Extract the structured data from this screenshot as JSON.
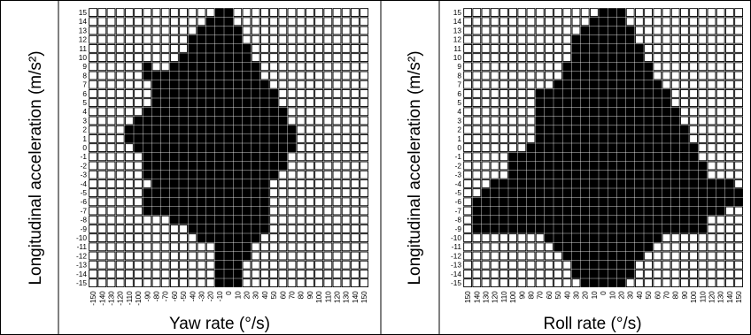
{
  "chart_data": [
    {
      "type": "heatmap",
      "title": "",
      "xlabel": "Yaw rate (°/s)",
      "ylabel": "Longitudinal acceleration (m/s²)",
      "x_ticks": [
        "-150",
        "-140",
        "-130",
        "-120",
        "-110",
        "-100",
        "-90",
        "-80",
        "-70",
        "-60",
        "-50",
        "-40",
        "-30",
        "-20",
        "-10",
        "0",
        "10",
        "20",
        "30",
        "40",
        "50",
        "60",
        "70",
        "80",
        "90",
        "100",
        "110",
        "120",
        "130",
        "140",
        "150"
      ],
      "y_ticks": [
        "15",
        "14",
        "13",
        "12",
        "11",
        "10",
        "9",
        "8",
        "7",
        "6",
        "5",
        "4",
        "3",
        "2",
        "1",
        "0",
        "-1",
        "-2",
        "-3",
        "-4",
        "-5",
        "-6",
        "-7",
        "-8",
        "-9",
        "-10",
        "-11",
        "-12",
        "-13",
        "-14",
        "-15"
      ],
      "x_step": 10,
      "y_step": 1,
      "filled_color": "#000000",
      "empty_color": "#ffffff",
      "grid": true,
      "filled_ranges": {
        "15": [
          [
            -10,
            0
          ]
        ],
        "14": [
          [
            -20,
            0
          ]
        ],
        "13": [
          [
            -30,
            10
          ]
        ],
        "12": [
          [
            -40,
            10
          ]
        ],
        "11": [
          [
            -40,
            20
          ]
        ],
        "10": [
          [
            -50,
            20
          ]
        ],
        "9": [
          [
            -90,
            -90
          ],
          [
            -60,
            30
          ]
        ],
        "8": [
          [
            -90,
            30
          ]
        ],
        "7": [
          [
            -80,
            40
          ]
        ],
        "6": [
          [
            -80,
            50
          ]
        ],
        "5": [
          [
            -80,
            50
          ]
        ],
        "4": [
          [
            -90,
            -80
          ],
          [
            -70,
            60
          ]
        ],
        "3": [
          [
            -100,
            60
          ]
        ],
        "2": [
          [
            -110,
            70
          ]
        ],
        "1": [
          [
            -110,
            70
          ]
        ],
        "0": [
          [
            -100,
            70
          ]
        ],
        "-1": [
          [
            -90,
            60
          ]
        ],
        "-2": [
          [
            -90,
            60
          ]
        ],
        "-3": [
          [
            -90,
            50
          ]
        ],
        "-4": [
          [
            -80,
            40
          ]
        ],
        "-5": [
          [
            -90,
            40
          ]
        ],
        "-6": [
          [
            -90,
            40
          ]
        ],
        "-7": [
          [
            -90,
            40
          ]
        ],
        "-8": [
          [
            -60,
            40
          ]
        ],
        "-9": [
          [
            -40,
            40
          ]
        ],
        "-10": [
          [
            -30,
            30
          ]
        ],
        "-11": [
          [
            -10,
            20
          ]
        ],
        "-12": [
          [
            -10,
            20
          ]
        ],
        "-13": [
          [
            -10,
            10
          ]
        ],
        "-14": [
          [
            -10,
            10
          ]
        ],
        "-15": [
          [
            -10,
            10
          ]
        ]
      }
    },
    {
      "type": "heatmap",
      "title": "",
      "xlabel": "Roll rate (°/s)",
      "ylabel": "Longitudinal acceleration (m/s²)",
      "x_ticks": [
        "150",
        "140",
        "130",
        "120",
        "110",
        "100",
        "90",
        "80",
        "70",
        "60",
        "50",
        "40",
        "30",
        "20",
        "10",
        "0",
        "10",
        "20",
        "30",
        "40",
        "50",
        "60",
        "70",
        "80",
        "90",
        "100",
        "110",
        "120",
        "130",
        "140",
        "150"
      ],
      "y_ticks": [
        "15",
        "14",
        "13",
        "12",
        "11",
        "10",
        "9",
        "8",
        "7",
        "6",
        "5",
        "4",
        "3",
        "2",
        "1",
        "0",
        "-1",
        "-2",
        "-3",
        "-4",
        "-5",
        "-6",
        "-7",
        "-8",
        "-9",
        "-10",
        "-11",
        "-12",
        "-13",
        "-14",
        "-15"
      ],
      "x_step": 10,
      "y_step": 1,
      "filled_color": "#000000",
      "empty_color": "#ffffff",
      "grid": true,
      "filled_ranges": {
        "15": [
          [
            0,
            20
          ]
        ],
        "14": [
          [
            -10,
            20
          ]
        ],
        "13": [
          [
            -20,
            30
          ]
        ],
        "12": [
          [
            -30,
            30
          ]
        ],
        "11": [
          [
            -30,
            40
          ]
        ],
        "10": [
          [
            -30,
            40
          ]
        ],
        "9": [
          [
            -40,
            50
          ]
        ],
        "8": [
          [
            -40,
            50
          ]
        ],
        "7": [
          [
            -50,
            60
          ]
        ],
        "6": [
          [
            -70,
            70
          ]
        ],
        "5": [
          [
            -70,
            70
          ]
        ],
        "4": [
          [
            -70,
            80
          ]
        ],
        "3": [
          [
            -70,
            80
          ]
        ],
        "2": [
          [
            -70,
            90
          ]
        ],
        "1": [
          [
            -70,
            90
          ]
        ],
        "0": [
          [
            -80,
            100
          ]
        ],
        "-1": [
          [
            -100,
            100
          ]
        ],
        "-2": [
          [
            -100,
            110
          ]
        ],
        "-3": [
          [
            -100,
            110
          ]
        ],
        "-4": [
          [
            -120,
            140
          ]
        ],
        "-5": [
          [
            -130,
            150
          ]
        ],
        "-6": [
          [
            -140,
            150
          ]
        ],
        "-7": [
          [
            -140,
            130
          ]
        ],
        "-8": [
          [
            -140,
            110
          ]
        ],
        "-9": [
          [
            -140,
            110
          ]
        ],
        "-10": [
          [
            -60,
            60
          ]
        ],
        "-11": [
          [
            -50,
            50
          ]
        ],
        "-12": [
          [
            -40,
            40
          ]
        ],
        "-13": [
          [
            -30,
            30
          ]
        ],
        "-14": [
          [
            -30,
            30
          ]
        ],
        "-15": [
          [
            -20,
            20
          ]
        ]
      }
    }
  ]
}
